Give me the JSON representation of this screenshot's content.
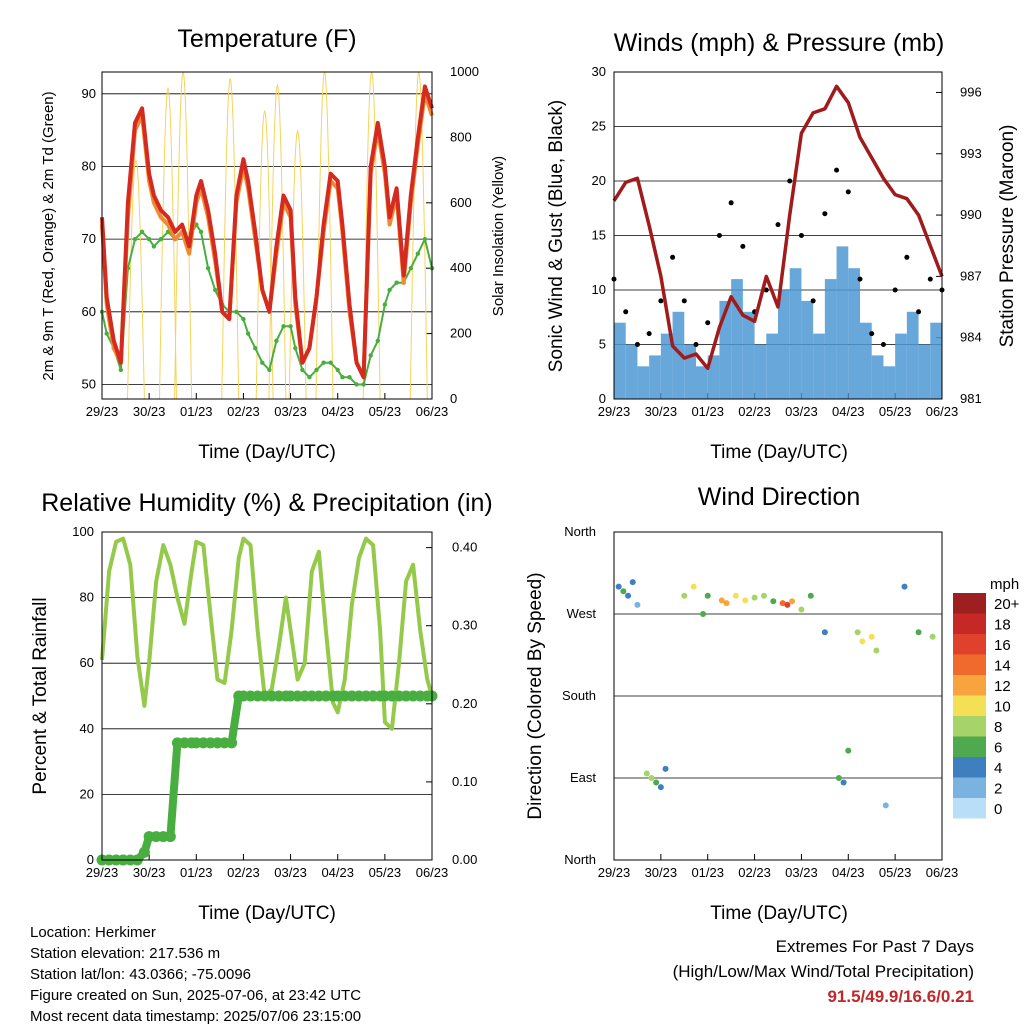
{
  "footer": {
    "location": "Location: Herkimer",
    "elevation": "Station elevation: 217.536 m",
    "latlon": "Station lat/lon: 43.0366; -75.0096",
    "created": "Figure created on Sun, 2025-07-06, at 23:42 UTC",
    "recent": "Most recent data timestamp: 2025/07/06 23:15:00"
  },
  "extremes": {
    "title": "Extremes For Past 7 Days",
    "subtitle": "(High/Low/Max Wind/Total Precipitation)",
    "values": "91.5/49.9/16.6/0.21"
  },
  "colors": {
    "temp2m": "#d42a20",
    "temp9m": "#f08a30",
    "dewpoint": "#48ae3f",
    "solar": "#f7d35a",
    "wind": "#4d98d3",
    "gust": "#000000",
    "pressure": "#a01b1c",
    "rh": "#94c94a",
    "precip": "#48ae3f"
  },
  "chart_data": [
    {
      "type": "line",
      "title": "Temperature (F)",
      "xlabel": "Time (Day/UTC)",
      "ylabel": "2m & 9m T (Red, Orange) & 2m Td (Green)",
      "y2label": "Solar Insolation (Yellow)",
      "x_ticks": [
        "29/23",
        "30/23",
        "01/23",
        "02/23",
        "03/23",
        "04/23",
        "05/23",
        "06/23"
      ],
      "ylim": [
        48,
        93
      ],
      "y_ticks": [
        50,
        60,
        70,
        80,
        90
      ],
      "y2lim": [
        0,
        1000
      ],
      "y2_ticks": [
        0,
        200,
        400,
        600,
        800,
        1000
      ],
      "grid": true,
      "x": [
        0,
        0.1,
        0.25,
        0.4,
        0.55,
        0.7,
        0.85,
        1,
        1.1,
        1.25,
        1.4,
        1.55,
        1.7,
        1.85,
        2,
        2.1,
        2.25,
        2.4,
        2.55,
        2.7,
        2.85,
        3,
        3.1,
        3.25,
        3.4,
        3.55,
        3.7,
        3.85,
        4,
        4.1,
        4.25,
        4.4,
        4.55,
        4.7,
        4.85,
        5,
        5.1,
        5.25,
        5.4,
        5.55,
        5.7,
        5.85,
        6,
        6.1,
        6.25,
        6.4,
        6.55,
        6.7,
        6.85,
        7
      ],
      "series": [
        {
          "name": "2m T",
          "values": [
            73,
            62,
            56,
            53,
            75,
            86,
            88,
            79,
            76,
            74,
            73,
            71,
            72,
            69,
            76,
            78,
            74,
            68,
            60,
            59,
            76,
            81,
            78,
            71,
            63,
            60,
            69,
            76,
            74,
            62,
            53,
            55,
            62,
            72,
            79,
            78,
            72,
            61,
            53,
            51,
            80,
            86,
            80,
            73,
            77,
            65,
            76,
            84,
            91,
            88
          ]
        },
        {
          "name": "9m T",
          "values": [
            72,
            61,
            55,
            53,
            73,
            85,
            87,
            78,
            75,
            73,
            72,
            70,
            71,
            68,
            75,
            77,
            73,
            67,
            60,
            59,
            75,
            80,
            77,
            70,
            63,
            60,
            68,
            75,
            73,
            61,
            53,
            55,
            62,
            71,
            78,
            77,
            71,
            60,
            53,
            51,
            79,
            85,
            79,
            72,
            76,
            64,
            75,
            83,
            90,
            87
          ]
        },
        {
          "name": "2m Td",
          "values": [
            60,
            57,
            55,
            52,
            66,
            70,
            71,
            70,
            69,
            70,
            71,
            70,
            71,
            70,
            72,
            71,
            66,
            63,
            61,
            60,
            60,
            59,
            57,
            55,
            53,
            52,
            56,
            58,
            58,
            55,
            52,
            51,
            52,
            53,
            53,
            52,
            51,
            51,
            50,
            50,
            54,
            56,
            61,
            63,
            64,
            64,
            66,
            68,
            70,
            66
          ]
        }
      ],
      "solar_peaks": [
        {
          "x": 0.72,
          "value": 730
        },
        {
          "x": 1.4,
          "value": 950
        },
        {
          "x": 1.72,
          "value": 1000
        },
        {
          "x": 2.72,
          "value": 980
        },
        {
          "x": 3.45,
          "value": 880
        },
        {
          "x": 3.72,
          "value": 960
        },
        {
          "x": 4.15,
          "value": 820
        },
        {
          "x": 4.72,
          "value": 1000
        },
        {
          "x": 5.72,
          "value": 1000
        },
        {
          "x": 6.72,
          "value": 1000
        }
      ]
    },
    {
      "type": "line",
      "title": "Winds (mph) & Pressure (mb)",
      "xlabel": "Time (Day/UTC)",
      "ylabel": "Sonic Wind & Gust (Blue, Black)",
      "y2label": "Station Pressure (Maroon)",
      "x_ticks": [
        "29/23",
        "30/23",
        "01/23",
        "02/23",
        "03/23",
        "04/23",
        "05/23",
        "06/23"
      ],
      "ylim": [
        0,
        30
      ],
      "y_ticks": [
        0,
        5,
        10,
        15,
        20,
        25,
        30
      ],
      "y2lim": [
        981,
        997
      ],
      "y2_ticks": [
        981,
        984,
        987,
        990,
        993,
        996
      ],
      "grid": true,
      "x": [
        0,
        0.25,
        0.5,
        0.75,
        1,
        1.25,
        1.5,
        1.75,
        2,
        2.25,
        2.5,
        2.75,
        3,
        3.25,
        3.5,
        3.75,
        4,
        4.25,
        4.5,
        4.75,
        5,
        5.25,
        5.5,
        5.75,
        6,
        6.25,
        6.5,
        6.75,
        7
      ],
      "series": [
        {
          "name": "Sonic Wind",
          "values": [
            7,
            5,
            3,
            4,
            6,
            8,
            5,
            3,
            4,
            9,
            11,
            8,
            5,
            6,
            10,
            12,
            9,
            6,
            11,
            14,
            12,
            7,
            4,
            3,
            6,
            8,
            5,
            7,
            6
          ]
        },
        {
          "name": "Gust",
          "values": [
            11,
            8,
            5,
            6,
            9,
            13,
            9,
            5,
            7,
            15,
            18,
            14,
            8,
            10,
            16,
            20,
            15,
            9,
            17,
            21,
            19,
            11,
            6,
            5,
            10,
            13,
            8,
            11,
            10
          ]
        },
        {
          "name": "Station Pressure",
          "values": [
            990.7,
            991.6,
            991.8,
            989.5,
            987,
            983.6,
            983,
            983.2,
            982.5,
            984.5,
            986,
            985.1,
            984.8,
            987,
            985.5,
            990,
            994,
            995,
            995.2,
            996.3,
            995.5,
            993.8,
            992.8,
            991.8,
            991,
            990.8,
            990,
            988.5,
            987
          ]
        }
      ]
    },
    {
      "type": "line",
      "title": "Relative Humidity (%) & Precipitation (in)",
      "xlabel": "Time (Day/UTC)",
      "ylabel": "Percent & Total Rainfall",
      "x_ticks": [
        "29/23",
        "30/23",
        "01/23",
        "02/23",
        "03/23",
        "04/23",
        "05/23",
        "06/23"
      ],
      "ylim": [
        0,
        100
      ],
      "y_ticks": [
        0,
        20,
        40,
        60,
        80,
        100
      ],
      "y2lim": [
        0,
        0.42
      ],
      "y2_ticks": [
        "0.00",
        "0.10",
        "0.20",
        "0.30",
        "0.40"
      ],
      "grid": true,
      "x": [
        0,
        0.15,
        0.3,
        0.45,
        0.6,
        0.75,
        0.9,
        1,
        1.15,
        1.3,
        1.45,
        1.6,
        1.75,
        1.9,
        2,
        2.15,
        2.3,
        2.45,
        2.6,
        2.75,
        2.9,
        3,
        3.15,
        3.3,
        3.45,
        3.6,
        3.75,
        3.9,
        4,
        4.15,
        4.3,
        4.45,
        4.6,
        4.75,
        4.9,
        5,
        5.15,
        5.3,
        5.45,
        5.6,
        5.75,
        5.9,
        6,
        6.15,
        6.3,
        6.45,
        6.6,
        6.75,
        6.9,
        7
      ],
      "series": [
        {
          "name": "RH",
          "values": [
            61,
            88,
            97,
            98,
            90,
            62,
            47,
            60,
            85,
            96,
            90,
            80,
            72,
            88,
            97,
            96,
            75,
            55,
            54,
            70,
            92,
            98,
            96,
            70,
            50,
            52,
            65,
            80,
            70,
            55,
            60,
            88,
            94,
            70,
            48,
            45,
            55,
            78,
            92,
            98,
            96,
            70,
            42,
            40,
            60,
            85,
            90,
            70,
            55,
            50
          ]
        },
        {
          "name": "Precip",
          "values": [
            0,
            0,
            0,
            0,
            0,
            0,
            0.01,
            0.03,
            0.03,
            0.03,
            0.03,
            0.15,
            0.15,
            0.15,
            0.15,
            0.15,
            0.15,
            0.15,
            0.15,
            0.15,
            0.21,
            0.21,
            0.21,
            0.21,
            0.21,
            0.21,
            0.21,
            0.21,
            0.21,
            0.21,
            0.21,
            0.21,
            0.21,
            0.21,
            0.21,
            0.21,
            0.21,
            0.21,
            0.21,
            0.21,
            0.21,
            0.21,
            0.21,
            0.21,
            0.21,
            0.21,
            0.21,
            0.21,
            0.21,
            0.21
          ]
        }
      ]
    },
    {
      "type": "scatter",
      "title": "Wind Direction",
      "xlabel": "Time (Day/UTC)",
      "ylabel": "Direction (Colored By Speed)",
      "x_ticks": [
        "29/23",
        "30/23",
        "01/23",
        "02/23",
        "03/23",
        "04/23",
        "05/23",
        "06/23"
      ],
      "y_ticks": [
        "North",
        "West",
        "South",
        "East",
        "North"
      ],
      "ylim": [
        0,
        360
      ],
      "grid": true,
      "legend": {
        "title": "mph",
        "labels": [
          "20+",
          "18",
          "16",
          "14",
          "12",
          "10",
          "8",
          "6",
          "4",
          "2",
          "0"
        ],
        "colors": [
          "#9e1f1f",
          "#c62828",
          "#e0412b",
          "#f06a2c",
          "#f8a43e",
          "#f3e055",
          "#a6d468",
          "#4ea94f",
          "#3e7fbf",
          "#7ab3e0",
          "#b8dff7"
        ]
      },
      "points": [
        {
          "x": 0.1,
          "dir": 300,
          "speed": 4
        },
        {
          "x": 0.2,
          "dir": 295,
          "speed": 5
        },
        {
          "x": 0.3,
          "dir": 290,
          "speed": 4
        },
        {
          "x": 0.4,
          "dir": 305,
          "speed": 3
        },
        {
          "x": 0.5,
          "dir": 280,
          "speed": 2
        },
        {
          "x": 0.7,
          "dir": 95,
          "speed": 7
        },
        {
          "x": 0.8,
          "dir": 90,
          "speed": 8
        },
        {
          "x": 0.9,
          "dir": 85,
          "speed": 6
        },
        {
          "x": 1,
          "dir": 80,
          "speed": 4
        },
        {
          "x": 1.1,
          "dir": 100,
          "speed": 3
        },
        {
          "x": 1.5,
          "dir": 290,
          "speed": 8
        },
        {
          "x": 1.7,
          "dir": 300,
          "speed": 9
        },
        {
          "x": 1.9,
          "dir": 270,
          "speed": 5
        },
        {
          "x": 2,
          "dir": 290,
          "speed": 6
        },
        {
          "x": 2.3,
          "dir": 285,
          "speed": 11
        },
        {
          "x": 2.4,
          "dir": 282,
          "speed": 12
        },
        {
          "x": 2.6,
          "dir": 290,
          "speed": 9
        },
        {
          "x": 2.8,
          "dir": 285,
          "speed": 10
        },
        {
          "x": 3,
          "dir": 288,
          "speed": 7
        },
        {
          "x": 3.2,
          "dir": 290,
          "speed": 8
        },
        {
          "x": 3.4,
          "dir": 284,
          "speed": 6
        },
        {
          "x": 3.6,
          "dir": 282,
          "speed": 13
        },
        {
          "x": 3.7,
          "dir": 280,
          "speed": 15
        },
        {
          "x": 3.8,
          "dir": 284,
          "speed": 12
        },
        {
          "x": 4,
          "dir": 275,
          "speed": 8
        },
        {
          "x": 4.2,
          "dir": 290,
          "speed": 5
        },
        {
          "x": 4.5,
          "dir": 250,
          "speed": 3
        },
        {
          "x": 4.8,
          "dir": 90,
          "speed": 6
        },
        {
          "x": 4.9,
          "dir": 85,
          "speed": 4
        },
        {
          "x": 5,
          "dir": 120,
          "speed": 5
        },
        {
          "x": 5.2,
          "dir": 250,
          "speed": 7
        },
        {
          "x": 5.3,
          "dir": 240,
          "speed": 9
        },
        {
          "x": 5.5,
          "dir": 245,
          "speed": 10
        },
        {
          "x": 5.6,
          "dir": 230,
          "speed": 8
        },
        {
          "x": 5.8,
          "dir": 60,
          "speed": 2
        },
        {
          "x": 6.2,
          "dir": 300,
          "speed": 3
        },
        {
          "x": 6.5,
          "dir": 250,
          "speed": 6
        },
        {
          "x": 6.8,
          "dir": 245,
          "speed": 8
        }
      ]
    }
  ]
}
